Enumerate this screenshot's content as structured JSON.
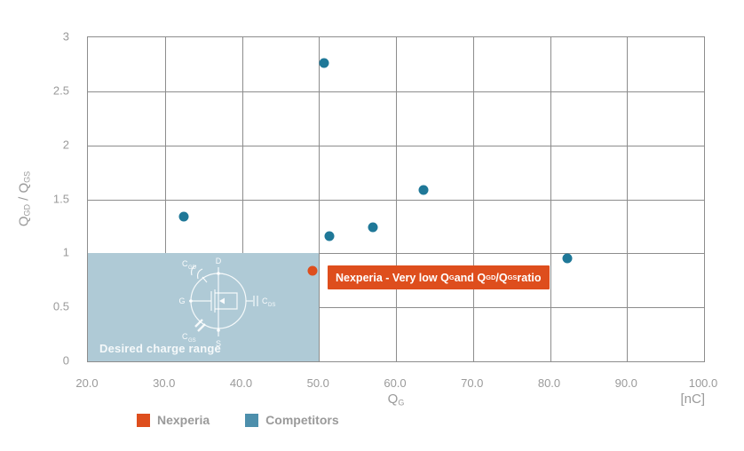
{
  "colors": {
    "nexperia_orange": "#DE4E1D",
    "competitor_point_blue": "#1F7898",
    "legend_blue": "#4D8FAC",
    "region_fill": "#AFCAD6",
    "grid_gray": "#8D8D8D",
    "text_gray": "#9A9A9A"
  },
  "chart_data": {
    "type": "scatter",
    "xlim": [
      20,
      100
    ],
    "ylim": [
      0,
      3
    ],
    "x_ticks": [
      20,
      30,
      40,
      50,
      60,
      70,
      80,
      90,
      100
    ],
    "x_tick_labels": [
      "20.0",
      "30.0",
      "40.0",
      "50.0",
      "60.0",
      "70.0",
      "80.0",
      "90.0",
      "100.0"
    ],
    "y_ticks": [
      0,
      0.5,
      1,
      1.5,
      2,
      2.5,
      3
    ],
    "y_tick_labels": [
      "0",
      "0.5",
      "1",
      "1.5",
      "2",
      "2.5",
      "3"
    ],
    "grid": true,
    "x_axis_label_parts": [
      {
        "t": "Q"
      },
      {
        "sub": "G"
      }
    ],
    "x_axis_unit": "[nC]",
    "y_axis_label_parts": [
      {
        "t": "Q"
      },
      {
        "sub": "GD"
      },
      {
        "t": " / Q"
      },
      {
        "sub": "GS"
      }
    ],
    "legend_position": "bottom",
    "series": [
      {
        "name": "Nexperia",
        "color": "#DE4E1D",
        "points": [
          [
            49.2,
            0.84
          ]
        ]
      },
      {
        "name": "Competitors",
        "color": "#1F7898",
        "points": [
          [
            32.4,
            1.34
          ],
          [
            50.7,
            2.76
          ],
          [
            51.3,
            1.16
          ],
          [
            57.0,
            1.24
          ],
          [
            63.6,
            1.59
          ],
          [
            82.3,
            0.95
          ]
        ]
      }
    ],
    "region": {
      "x0": 20,
      "x1": 50,
      "y0": 0,
      "y1": 1,
      "label": "Desired charge range"
    },
    "annotation_parts": [
      {
        "t": "Nexperia - Very low Q"
      },
      {
        "sub": "G"
      },
      {
        "t": " and Q"
      },
      {
        "sub": "GD"
      },
      {
        "t": "/Q"
      },
      {
        "sub": "GS"
      },
      {
        "t": " ratio"
      }
    ]
  },
  "legend": {
    "items": [
      {
        "label": "Nexperia",
        "color": "#DE4E1D"
      },
      {
        "label": "Competitors",
        "color": "#4D8FAC"
      }
    ]
  },
  "diagram": {
    "drain": "D",
    "gate": "G",
    "source": "S",
    "cap_gd": {
      "main": "C",
      "sub": "GD"
    },
    "cap_ds": {
      "main": "C",
      "sub": "DS"
    },
    "cap_gs": {
      "main": "C",
      "sub": "GS"
    }
  }
}
